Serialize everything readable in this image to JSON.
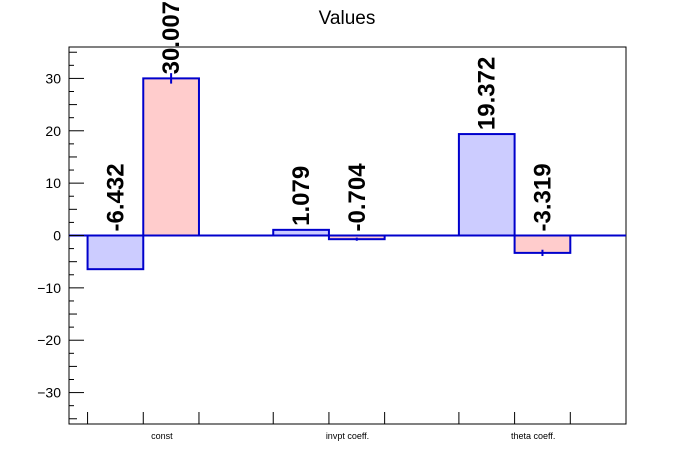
{
  "chart_data": {
    "type": "bar",
    "title": "Values",
    "xlabel": "",
    "ylabel": "",
    "categories": [
      "const",
      "invpt coeff.",
      "theta coeff."
    ],
    "ylim": [
      -36,
      36
    ],
    "yticks": [
      -30,
      -20,
      -10,
      0,
      10,
      20,
      30
    ],
    "ytick_labels": [
      "−30",
      "−20",
      "−10",
      "0",
      "10",
      "20",
      "30"
    ],
    "grid": false,
    "series": [
      {
        "values": [
          -6.432,
          1.079,
          19.372
        ],
        "labels": [
          "-6.432",
          "1.079",
          "19.372"
        ],
        "errors": [
          0,
          0,
          0
        ],
        "fill": "#ccccff",
        "stroke": "#0000cc"
      },
      {
        "values": [
          30.007,
          -0.704,
          -3.319
        ],
        "labels": [
          "30.007",
          "-0.704",
          "-3.319"
        ],
        "errors": [
          1.0,
          0.3,
          0.6
        ],
        "fill": "#ffcccc",
        "stroke": "#0000cc"
      }
    ],
    "axis_color": "#000000",
    "zero_line_color": "#0000cc"
  }
}
